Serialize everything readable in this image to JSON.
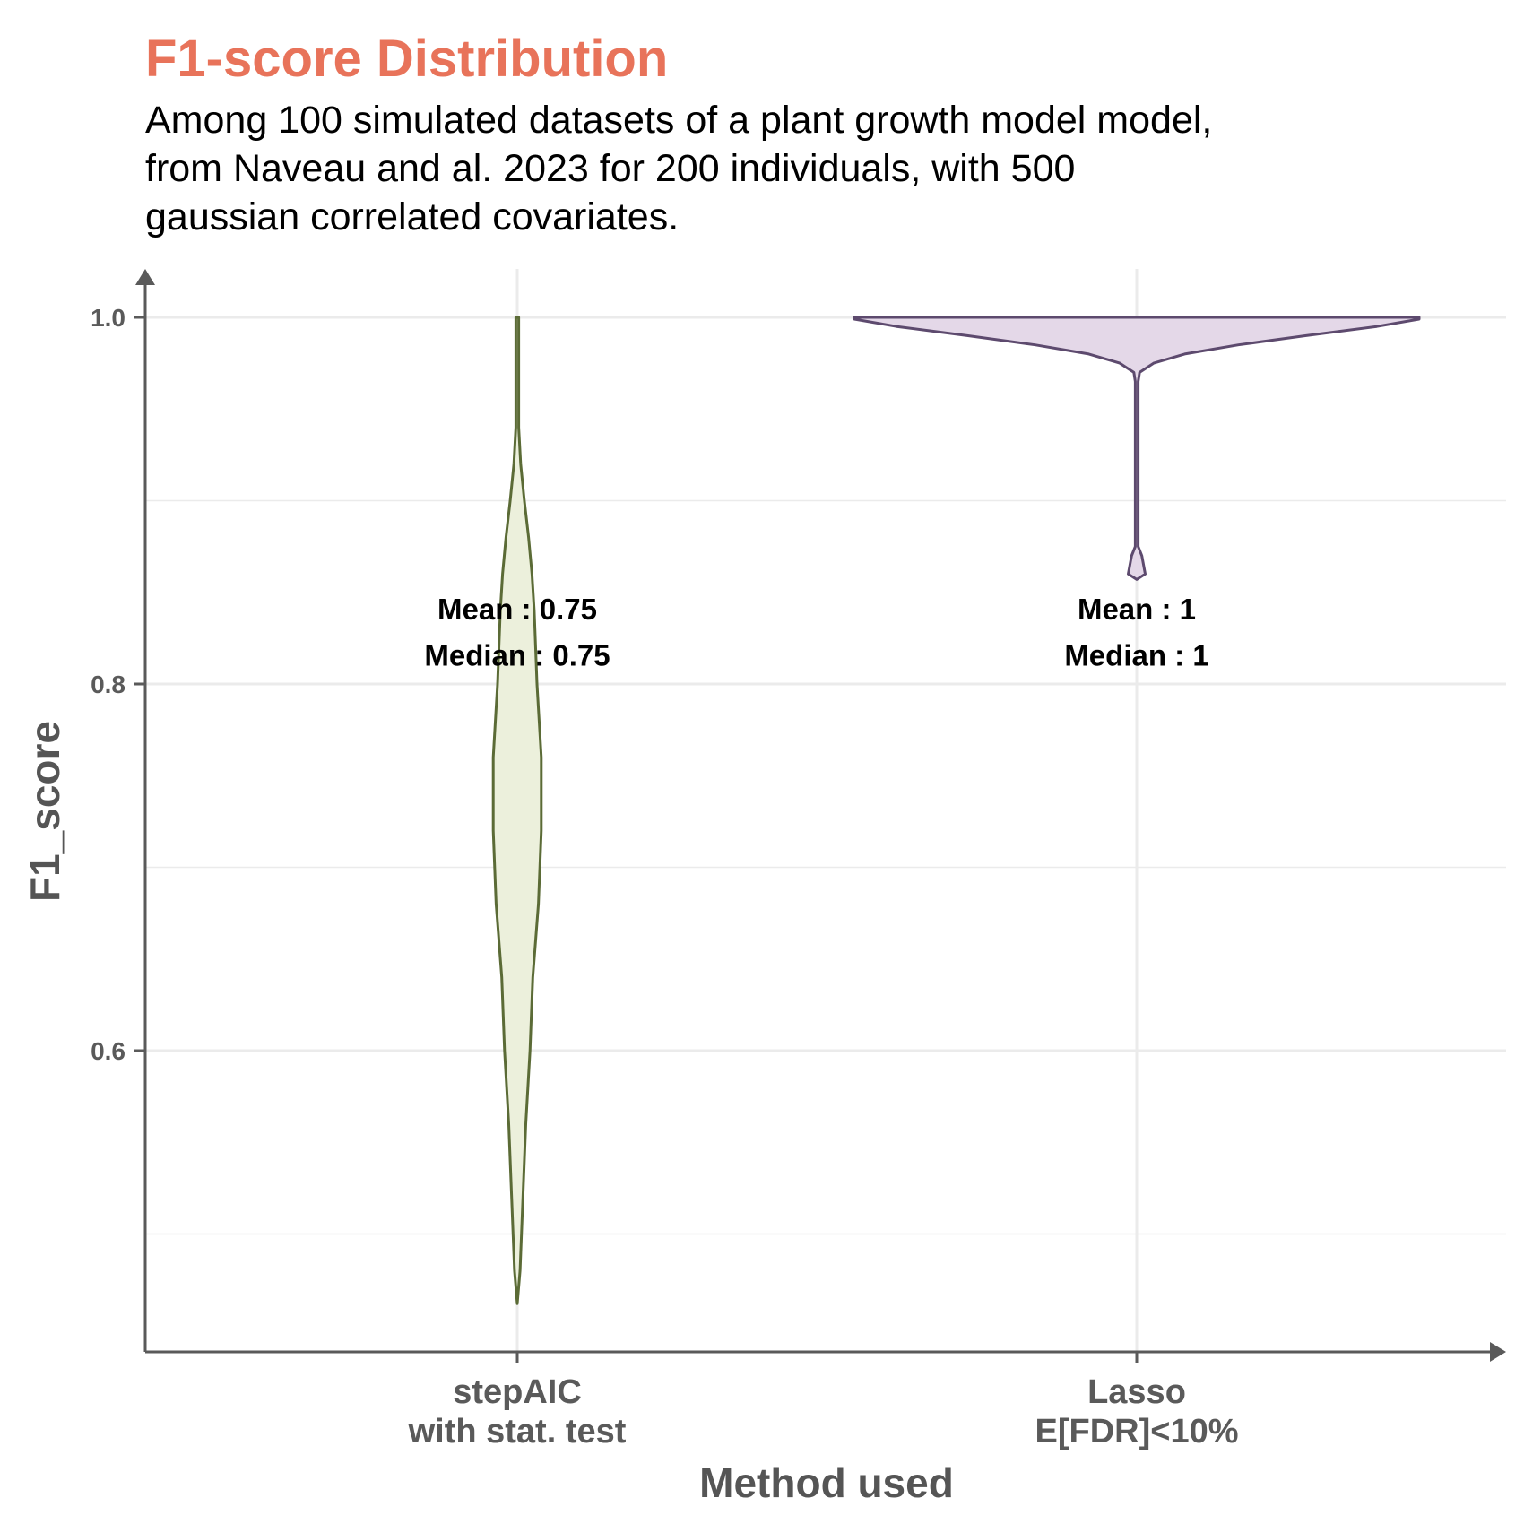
{
  "chart_data": {
    "type": "violin",
    "title": "F1-score Distribution",
    "subtitle": [
      "Among 100 simulated datasets of a plant growth model model,",
      "from Naveau and al. 2023 for 200 individuals, with 500",
      "gaussian correlated covariates."
    ],
    "xlabel": "Method used",
    "ylabel": "F1_score",
    "ylim": [
      0.43,
      1.03
    ],
    "yticks": [
      0.6,
      0.8,
      1.0
    ],
    "ytick_labels": [
      "0.6",
      "0.8",
      "1.0"
    ],
    "yminor_ticks": [
      0.5,
      0.7,
      0.9
    ],
    "grid": true,
    "colors": {
      "title": "#E8735A",
      "axis": "#5a5a5a",
      "grid": "#ebebeb"
    },
    "categories": [
      [
        "stepAIC",
        "with stat. test"
      ],
      [
        "Lasso",
        "E[FDR]<10%"
      ]
    ],
    "series": [
      {
        "fill": "#ecf0dc",
        "stroke": "#5b6b36",
        "profile": [
          [
            0.462,
            0.0
          ],
          [
            0.48,
            0.01
          ],
          [
            0.52,
            0.02
          ],
          [
            0.56,
            0.03
          ],
          [
            0.6,
            0.045
          ],
          [
            0.64,
            0.055
          ],
          [
            0.68,
            0.075
          ],
          [
            0.72,
            0.085
          ],
          [
            0.76,
            0.085
          ],
          [
            0.8,
            0.07
          ],
          [
            0.84,
            0.06
          ],
          [
            0.86,
            0.052
          ],
          [
            0.88,
            0.04
          ],
          [
            0.9,
            0.025
          ],
          [
            0.92,
            0.012
          ],
          [
            0.94,
            0.005
          ],
          [
            0.96,
            0.005
          ],
          [
            1.0,
            0.005
          ]
        ],
        "annotations": [
          "Mean : 0.75",
          "Median : 0.75"
        ],
        "annotation_y": [
          0.841,
          0.816
        ]
      },
      {
        "fill": "#e4d8e8",
        "stroke": "#5d4a6e",
        "profile": [
          [
            0.857,
            0.0
          ],
          [
            0.86,
            0.03
          ],
          [
            0.87,
            0.018
          ],
          [
            0.875,
            0.005
          ],
          [
            0.88,
            0.005
          ],
          [
            0.9,
            0.005
          ],
          [
            0.94,
            0.005
          ],
          [
            0.965,
            0.005
          ],
          [
            0.97,
            0.01
          ],
          [
            0.975,
            0.06
          ],
          [
            0.98,
            0.17
          ],
          [
            0.985,
            0.36
          ],
          [
            0.99,
            0.6
          ],
          [
            0.995,
            0.85
          ],
          [
            0.999,
            1.0
          ],
          [
            1.0,
            1.0
          ]
        ],
        "annotations": [
          "Mean : 1",
          "Median : 1"
        ],
        "annotation_y": [
          0.841,
          0.816
        ]
      }
    ]
  }
}
